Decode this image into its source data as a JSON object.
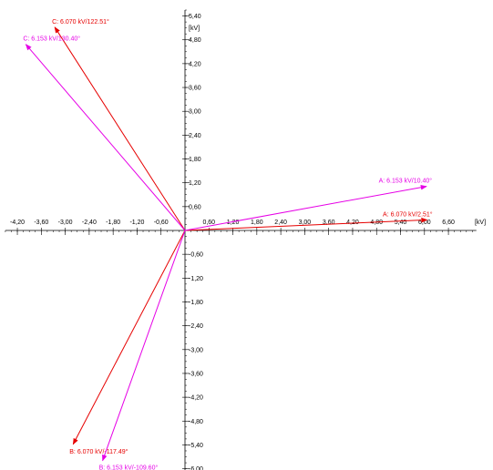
{
  "diagram": {
    "axes": {
      "x_unit": "[kV]",
      "y_unit": "[kV]",
      "x_range": [
        -4.5,
        7.3
      ],
      "y_range": [
        -6.15,
        5.55
      ],
      "x_tick_labels": [
        "-4,20",
        "-3,60",
        "-3,00",
        "-2,40",
        "-1,80",
        "-1,20",
        "-0,60",
        "0,60",
        "1,20",
        "1,80",
        "2,40",
        "3,00",
        "3,60",
        "4,20",
        "4,80",
        "5,40",
        "6,00",
        "6,60"
      ],
      "x_tick_values": [
        -4.2,
        -3.6,
        -3.0,
        -2.4,
        -1.8,
        -1.2,
        -0.6,
        0.6,
        1.2,
        1.8,
        2.4,
        3.0,
        3.6,
        4.2,
        4.8,
        5.4,
        6.0,
        6.6
      ],
      "y_tick_labels": [
        "5,40",
        "4,80",
        "4,20",
        "3,60",
        "3,00",
        "2,40",
        "1,80",
        "1,20",
        "0,60",
        "-0,60",
        "-1,20",
        "-1,80",
        "-2,40",
        "-3,00",
        "-3,60",
        "-4,20",
        "-4,80",
        "-5,40",
        "-6,00"
      ],
      "y_tick_values": [
        5.4,
        4.8,
        4.2,
        3.6,
        3.0,
        2.4,
        1.8,
        1.2,
        0.6,
        -0.6,
        -1.2,
        -1.8,
        -2.4,
        -3.0,
        -3.6,
        -4.2,
        -4.8,
        -5.4,
        -6.0
      ]
    },
    "phasors": [
      {
        "name": "phasor-a-red",
        "label": "A: 6.070 kV/2.51°",
        "magnitude": 6.07,
        "angle": 2.51,
        "color": "#e60000"
      },
      {
        "name": "phasor-b-red",
        "label": "B: 6.070 kV/-117.49°",
        "magnitude": 6.07,
        "angle": -117.49,
        "color": "#e60000"
      },
      {
        "name": "phasor-c-red",
        "label": "C: 6.070 kV/122.51°",
        "magnitude": 6.07,
        "angle": 122.51,
        "color": "#e60000"
      },
      {
        "name": "phasor-a-magenta",
        "label": "A: 6.153 kV/10.40°",
        "magnitude": 6.153,
        "angle": 10.4,
        "color": "#e600e6"
      },
      {
        "name": "phasor-b-magenta",
        "label": "B: 6.153 kV/-109.60°",
        "magnitude": 6.153,
        "angle": -109.6,
        "color": "#e600e6"
      },
      {
        "name": "phasor-c-magenta",
        "label": "C: 6.153 kV/130.40°",
        "magnitude": 6.153,
        "angle": 130.4,
        "color": "#e600e6"
      }
    ]
  }
}
